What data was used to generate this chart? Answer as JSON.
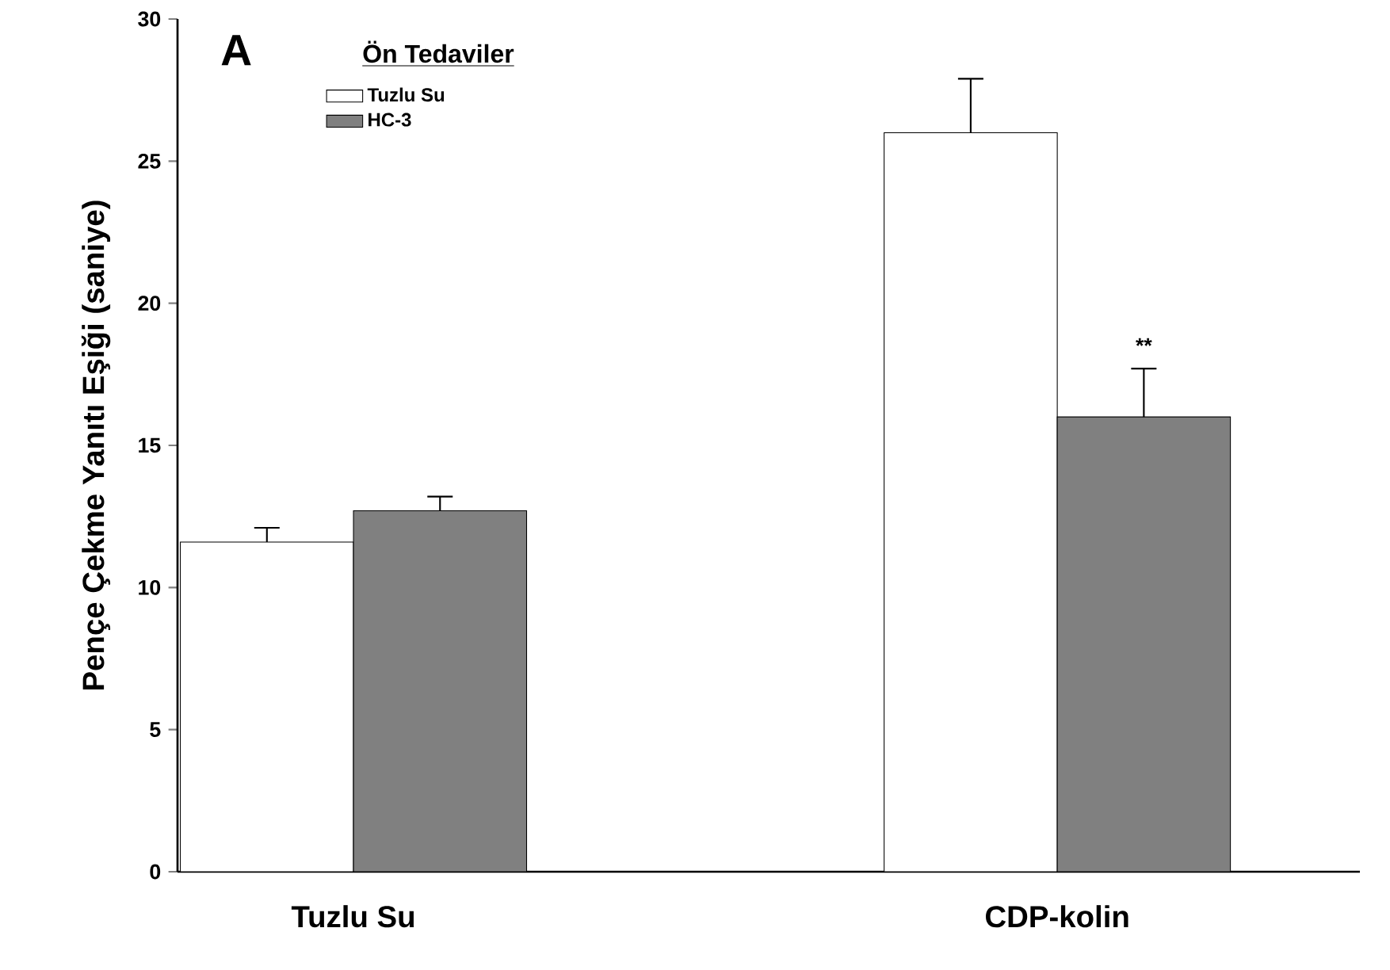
{
  "chart_data": {
    "type": "bar",
    "ylabel": "Pençe Çekme Yanıtı Eşiği (saniye)",
    "legend_title": "Ön Tedaviler",
    "categories": [
      "Tuzlu Su",
      "CDP-kolin"
    ],
    "series": [
      {
        "name": "Tuzlu Su",
        "color": "#ffffff",
        "values": [
          11.6,
          26.0
        ],
        "errors": [
          0.5,
          1.9
        ]
      },
      {
        "name": "HC-3",
        "color": "#808080",
        "values": [
          12.7,
          16.0
        ],
        "errors": [
          0.5,
          1.7
        ]
      }
    ],
    "ylim": [
      0,
      30
    ],
    "yticks": [
      0,
      5,
      10,
      15,
      20,
      25,
      30
    ],
    "legend": "top left",
    "annotations": [
      "A",
      "**"
    ]
  }
}
